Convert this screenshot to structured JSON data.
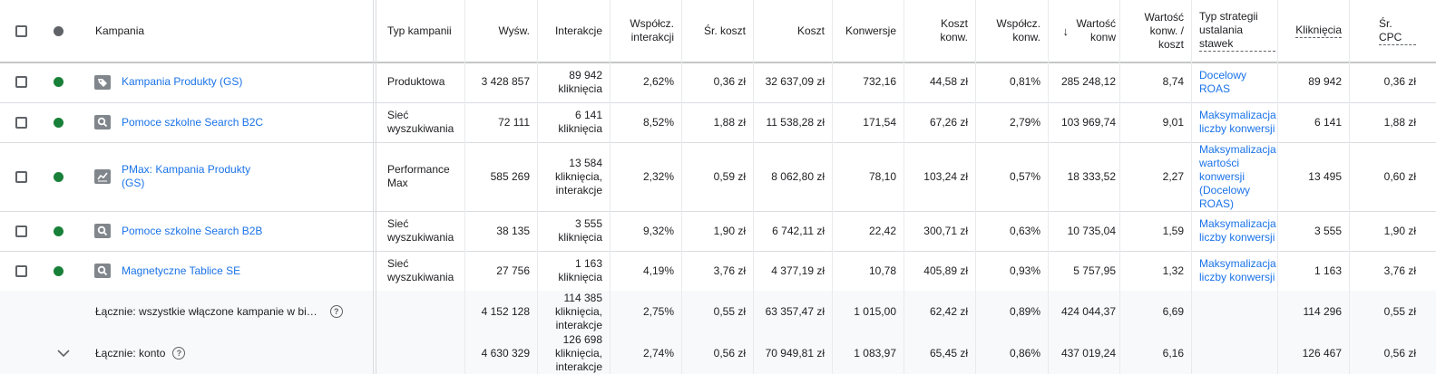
{
  "colors": {
    "status_enabled": "#188038",
    "link": "#1a73e8",
    "header_status_dot": "#5f6368"
  },
  "header": {
    "name": "Kampania",
    "type": "Typ kampanii",
    "impr": "Wyśw.",
    "inter": "Interakcje",
    "inter_rate": "Współcz. interakcji",
    "avg_cost": "Śr. koszt",
    "cost": "Koszt",
    "conv": "Konwersje",
    "cost_conv": "Koszt konw.",
    "conv_rate": "Współcz. konw.",
    "conv_value": "Wartość konw",
    "value_cost": "Wartość konw. / koszt",
    "strategy": "Typ strategii ustalania stawek",
    "clicks": "Kliknięcia",
    "cpc": "Śr. CPC"
  },
  "rows": [
    {
      "icon": "tag-icon",
      "name": "Kampania Produkty (GS)",
      "type": "Produktowa",
      "impr": "3 428 857",
      "inter": "89 942 kliknięcia",
      "inter_rate": "2,62%",
      "avg_cost": "0,36 zł",
      "cost": "32 637,09 zł",
      "conv": "732,16",
      "cost_conv": "44,58 zł",
      "conv_rate": "0,81%",
      "conv_value": "285 248,12",
      "value_cost": "8,74",
      "strategy": "Docelowy ROAS",
      "clicks": "89 942",
      "cpc": "0,36 zł"
    },
    {
      "icon": "search-icon",
      "name": "Pomoce szkolne Search B2C",
      "type": "Sieć wyszukiwania",
      "impr": "72 111",
      "inter": "6 141 kliknięcia",
      "inter_rate": "8,52%",
      "avg_cost": "1,88 zł",
      "cost": "11 538,28 zł",
      "conv": "171,54",
      "cost_conv": "67,26 zł",
      "conv_rate": "2,79%",
      "conv_value": "103 969,74",
      "value_cost": "9,01",
      "strategy": "Maksymalizacja liczby konwersji",
      "clicks": "6 141",
      "cpc": "1,88 zł"
    },
    {
      "icon": "trending-chart-icon",
      "name": "PMax: Kampania Produkty (GS)",
      "type": "Performance Max",
      "impr": "585 269",
      "inter": "13 584 kliknięcia, interakcje",
      "inter_rate": "2,32%",
      "avg_cost": "0,59 zł",
      "cost": "8 062,80 zł",
      "conv": "78,10",
      "cost_conv": "103,24 zł",
      "conv_rate": "0,57%",
      "conv_value": "18 333,52",
      "value_cost": "2,27",
      "strategy": "Maksymalizacja wartości konwersji (Docelowy ROAS)",
      "clicks": "13 495",
      "cpc": "0,60 zł"
    },
    {
      "icon": "search-icon",
      "name": "Pomoce szkolne Search B2B",
      "type": "Sieć wyszukiwania",
      "impr": "38 135",
      "inter": "3 555 kliknięcia",
      "inter_rate": "9,32%",
      "avg_cost": "1,90 zł",
      "cost": "6 742,11 zł",
      "conv": "22,42",
      "cost_conv": "300,71 zł",
      "conv_rate": "0,63%",
      "conv_value": "10 735,04",
      "value_cost": "1,59",
      "strategy": "Maksymalizacja liczby konwersji",
      "clicks": "3 555",
      "cpc": "1,90 zł"
    },
    {
      "icon": "search-icon",
      "name": "Magnetyczne Tablice SE",
      "type": "Sieć wyszukiwania",
      "impr": "27 756",
      "inter": "1 163 kliknięcia",
      "inter_rate": "4,19%",
      "avg_cost": "3,76 zł",
      "cost": "4 377,19 zł",
      "conv": "10,78",
      "cost_conv": "405,89 zł",
      "conv_rate": "0,93%",
      "conv_value": "5 757,95",
      "value_cost": "1,32",
      "strategy": "Maksymalizacja liczby konwersji",
      "clicks": "1 163",
      "cpc": "3,76 zł"
    }
  ],
  "totals": [
    {
      "label": "Łącznie: wszystkie włączone kampanie w bi…",
      "impr": "4 152 128",
      "inter": "114 385 kliknięcia, interakcje",
      "inter_rate": "2,75%",
      "avg_cost": "0,55 zł",
      "cost": "63 357,47 zł",
      "conv": "1 015,00",
      "cost_conv": "62,42 zł",
      "conv_rate": "0,89%",
      "conv_value": "424 044,37",
      "value_cost": "6,69",
      "clicks": "114 296",
      "cpc": "0,55 zł"
    },
    {
      "label": "Łącznie: konto",
      "impr": "4 630 329",
      "inter": "126 698 kliknięcia, interakcje",
      "inter_rate": "2,74%",
      "avg_cost": "0,56 zł",
      "cost": "70 949,81 zł",
      "conv": "1 083,97",
      "cost_conv": "65,45 zł",
      "conv_rate": "0,86%",
      "conv_value": "437 019,24",
      "value_cost": "6,16",
      "clicks": "126 467",
      "cpc": "0,56 zł"
    }
  ]
}
